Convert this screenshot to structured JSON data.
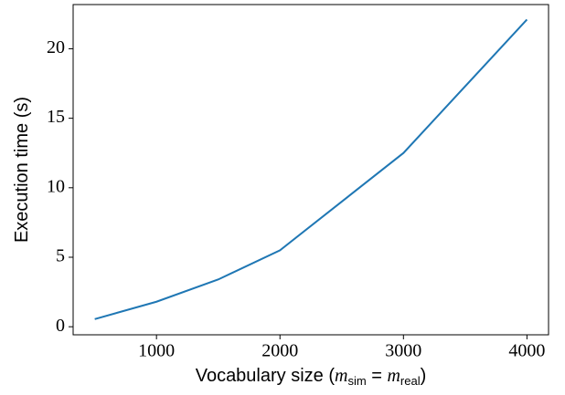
{
  "chart_data": {
    "type": "line",
    "xlabel_parts": [
      "Vocabulary size (",
      "m",
      "sim",
      " = ",
      "m",
      "real",
      ")"
    ],
    "ylabel": "Execution time (s)",
    "x": [
      500,
      1000,
      1500,
      2000,
      3000,
      4000
    ],
    "series": [
      {
        "name": "Execution time",
        "color": "#1f77b4",
        "values": [
          0.55,
          1.8,
          3.4,
          5.5,
          12.5,
          22.1
        ]
      }
    ],
    "xlim": [
      325,
      4175
    ],
    "xticks": [
      1000,
      2000,
      3000,
      4000
    ],
    "ylim": [
      -0.58,
      23.18
    ],
    "yticks": [
      0,
      5,
      10,
      15,
      20
    ]
  }
}
